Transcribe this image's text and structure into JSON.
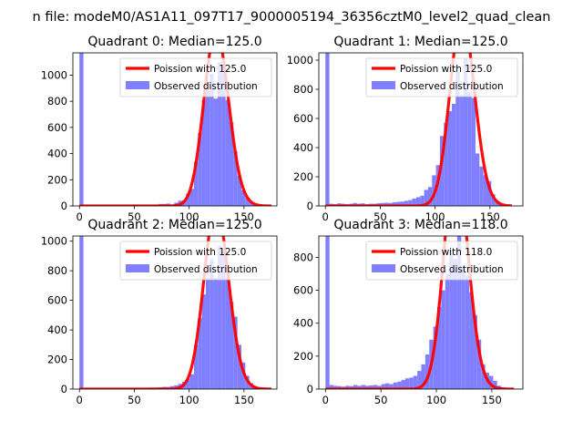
{
  "figure": {
    "suptitle": "n file: modeM0/AS1A11_097T17_9000005194_36356cztM0_level2_quad_clean"
  },
  "colors": {
    "fit_line": "#ff0000",
    "histogram": "#7f7fff",
    "axis": "#000000",
    "legend_edge": "#cccccc"
  },
  "chart_data": [
    {
      "type": "bar",
      "title": "Quadrant 0: Median=125.0",
      "xlim": [
        -6,
        180
      ],
      "ylim": [
        0,
        1170
      ],
      "xticks": [
        0,
        50,
        100,
        150
      ],
      "yticks": [
        0,
        200,
        400,
        600,
        800,
        1000
      ],
      "legend": [
        "Poission with 125.0",
        "Observed distribution"
      ],
      "legend_position": "upper right",
      "bin_width": 3.6,
      "histogram": {
        "name": "Observed distribution",
        "bin_starts": [
          0,
          72,
          75.6,
          79.2,
          82.8,
          86.4,
          90,
          93.6,
          97.2,
          100.8,
          104.4,
          108,
          111.6,
          115.2,
          118.8,
          122.4,
          126,
          129.6,
          133.2,
          136.8,
          140.4,
          144,
          147.6,
          151.2,
          154.8,
          158.4,
          162,
          165.6
        ],
        "counts": [
          1170,
          15,
          15,
          18,
          10,
          25,
          40,
          45,
          95,
          130,
          340,
          560,
          810,
          880,
          1010,
          820,
          1100,
          1020,
          810,
          640,
          420,
          230,
          120,
          60,
          25,
          10,
          5,
          3
        ]
      },
      "fit": {
        "name": "Poission with 125.0",
        "lambda": 125.0,
        "x_range": [
          0,
          175
        ]
      }
    },
    {
      "type": "bar",
      "title": "Quadrant 1: Median=125.0",
      "xlim": [
        -6,
        180
      ],
      "ylim": [
        0,
        1050
      ],
      "xticks": [
        0,
        50,
        100,
        150
      ],
      "yticks": [
        0,
        200,
        400,
        600,
        800,
        1000
      ],
      "legend": [
        "Poission with 125.0",
        "Observed distribution"
      ],
      "legend_position": "upper right",
      "bin_width": 3.6,
      "histogram": {
        "name": "Observed distribution",
        "bin_starts": [
          0,
          3.6,
          7.2,
          10.8,
          14.4,
          18,
          21.6,
          25.2,
          28.8,
          32.4,
          36,
          39.6,
          43.2,
          46.8,
          50.4,
          54,
          57.6,
          61.2,
          64.8,
          68.4,
          72,
          75.6,
          79.2,
          82.8,
          86.4,
          90,
          93.6,
          97.2,
          100.8,
          104.4,
          108,
          111.6,
          115.2,
          118.8,
          122.4,
          126,
          129.6,
          133.2,
          136.8,
          140.4,
          144,
          147.6,
          151.2,
          154.8,
          158.4
        ],
        "counts": [
          1050,
          15,
          12,
          18,
          15,
          12,
          15,
          20,
          15,
          18,
          12,
          15,
          15,
          18,
          20,
          22,
          20,
          25,
          28,
          30,
          35,
          40,
          50,
          60,
          70,
          110,
          130,
          210,
          280,
          480,
          570,
          650,
          700,
          920,
          760,
          1010,
          780,
          740,
          360,
          270,
          210,
          170,
          80,
          30,
          12
        ]
      },
      "fit": {
        "name": "Poission with 125.0",
        "lambda": 125.0,
        "x_range": [
          0,
          170
        ]
      }
    },
    {
      "type": "bar",
      "title": "Quadrant 2: Median=125.0",
      "xlim": [
        -6,
        180
      ],
      "ylim": [
        0,
        1035
      ],
      "xticks": [
        0,
        50,
        100,
        150
      ],
      "yticks": [
        0,
        200,
        400,
        600,
        800,
        1000
      ],
      "legend": [
        "Poission with 125.0",
        "Observed distribution"
      ],
      "legend_position": "upper right",
      "bin_width": 3.6,
      "histogram": {
        "name": "Observed distribution",
        "bin_starts": [
          0,
          64.8,
          68.4,
          72,
          75.6,
          79.2,
          82.8,
          86.4,
          90,
          93.6,
          97.2,
          100.8,
          104.4,
          108,
          111.6,
          115.2,
          118.8,
          122.4,
          126,
          129.6,
          133.2,
          136.8,
          140.4,
          144,
          147.6,
          151.2,
          154.8,
          158.4,
          162,
          165.6
        ],
        "counts": [
          1035,
          10,
          10,
          12,
          15,
          15,
          20,
          25,
          35,
          50,
          70,
          100,
          300,
          480,
          640,
          750,
          880,
          750,
          970,
          930,
          750,
          590,
          490,
          300,
          180,
          90,
          40,
          20,
          10,
          5
        ]
      },
      "fit": {
        "name": "Poission with 125.0",
        "lambda": 125.0,
        "x_range": [
          0,
          175
        ]
      }
    },
    {
      "type": "bar",
      "title": "Quadrant 3: Median=118.0",
      "xlim": [
        -6,
        178
      ],
      "ylim": [
        0,
        930
      ],
      "xticks": [
        0,
        50,
        100,
        150
      ],
      "yticks": [
        0,
        200,
        400,
        600,
        800
      ],
      "legend": [
        "Poission with 118.0",
        "Observed distribution"
      ],
      "legend_position": "upper right",
      "bin_width": 3.6,
      "histogram": {
        "name": "Observed distribution",
        "bin_starts": [
          0,
          3.6,
          7.2,
          10.8,
          14.4,
          18,
          21.6,
          25.2,
          28.8,
          32.4,
          36,
          39.6,
          43.2,
          46.8,
          50.4,
          54,
          57.6,
          61.2,
          64.8,
          68.4,
          72,
          75.6,
          79.2,
          82.8,
          86.4,
          90,
          93.6,
          97.2,
          100.8,
          104.4,
          108,
          111.6,
          115.2,
          118.8,
          122.4,
          126,
          129.6,
          133.2,
          136.8,
          140.4,
          144,
          147.6,
          151.2,
          154.8,
          158.4
        ],
        "counts": [
          930,
          25,
          20,
          18,
          15,
          20,
          18,
          25,
          20,
          25,
          20,
          22,
          25,
          20,
          30,
          35,
          30,
          40,
          45,
          55,
          65,
          70,
          80,
          110,
          150,
          210,
          300,
          380,
          500,
          600,
          700,
          840,
          790,
          930,
          750,
          690,
          590,
          450,
          300,
          150,
          100,
          80,
          50,
          20,
          10
        ]
      },
      "fit": {
        "name": "Poission with 118.0",
        "lambda": 118.0,
        "x_range": [
          0,
          170
        ]
      }
    }
  ]
}
